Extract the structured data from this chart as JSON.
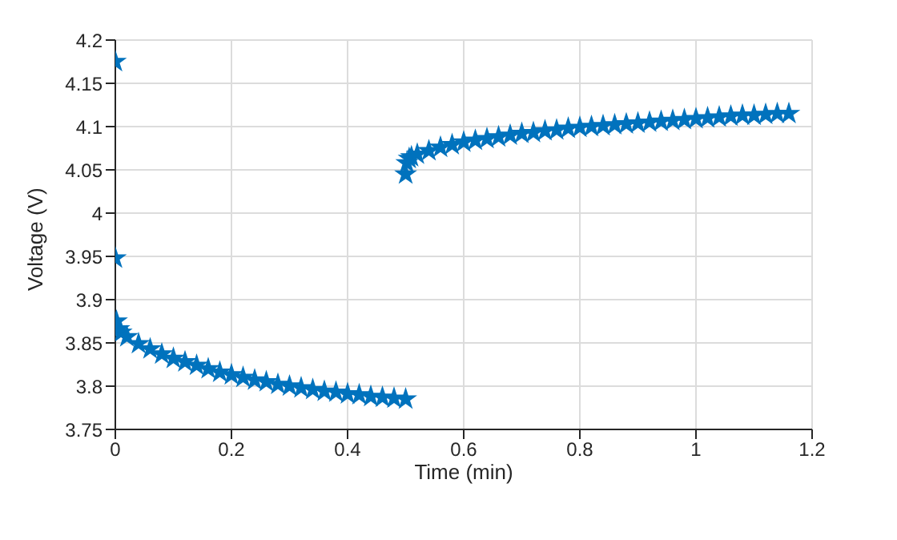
{
  "chart_data": {
    "type": "scatter",
    "xlabel": "Time (min)",
    "ylabel": "Voltage (V)",
    "xlim": [
      0,
      1.2
    ],
    "xticks": [
      0,
      0.2,
      0.4,
      0.6,
      0.8,
      1,
      1.2
    ],
    "ylim": [
      3.75,
      4.2
    ],
    "yticks": [
      3.75,
      3.8,
      3.85,
      3.9,
      3.95,
      4,
      4.05,
      4.1,
      4.15,
      4.2
    ],
    "grid": true,
    "marker": "star",
    "series": [
      {
        "color": "#0072bd",
        "x": [
          0,
          0,
          0.002,
          0.006,
          0.01,
          0.02,
          0.04,
          0.06,
          0.08,
          0.1,
          0.12,
          0.14,
          0.16,
          0.18,
          0.2,
          0.22,
          0.24,
          0.26,
          0.28,
          0.3,
          0.32,
          0.34,
          0.36,
          0.38,
          0.4,
          0.42,
          0.44,
          0.46,
          0.48,
          0.5,
          0.5,
          0.502,
          0.506,
          0.51,
          0.52,
          0.54,
          0.56,
          0.58,
          0.6,
          0.62,
          0.64,
          0.66,
          0.68,
          0.7,
          0.72,
          0.74,
          0.76,
          0.78,
          0.8,
          0.82,
          0.84,
          0.86,
          0.88,
          0.9,
          0.92,
          0.94,
          0.96,
          0.98,
          1,
          1.02,
          1.04,
          1.06,
          1.08,
          1.1,
          1.12,
          1.14,
          1.16
        ],
        "values": [
          4.175,
          3.948,
          3.875,
          3.866,
          3.862,
          3.857,
          3.849,
          3.843,
          3.837,
          3.832,
          3.828,
          3.824,
          3.82,
          3.816,
          3.813,
          3.81,
          3.807,
          3.805,
          3.802,
          3.8,
          3.798,
          3.796,
          3.794,
          3.793,
          3.791,
          3.79,
          3.788,
          3.787,
          3.786,
          3.785,
          4.045,
          4.058,
          4.063,
          4.065,
          4.068,
          4.072,
          4.076,
          4.079,
          4.082,
          4.084,
          4.086,
          4.088,
          4.09,
          4.092,
          4.093,
          4.095,
          4.096,
          4.098,
          4.099,
          4.1,
          4.101,
          4.102,
          4.103,
          4.104,
          4.105,
          4.106,
          4.107,
          4.108,
          4.109,
          4.11,
          4.111,
          4.112,
          4.113,
          4.113,
          4.114,
          4.115,
          4.115
        ]
      }
    ]
  }
}
